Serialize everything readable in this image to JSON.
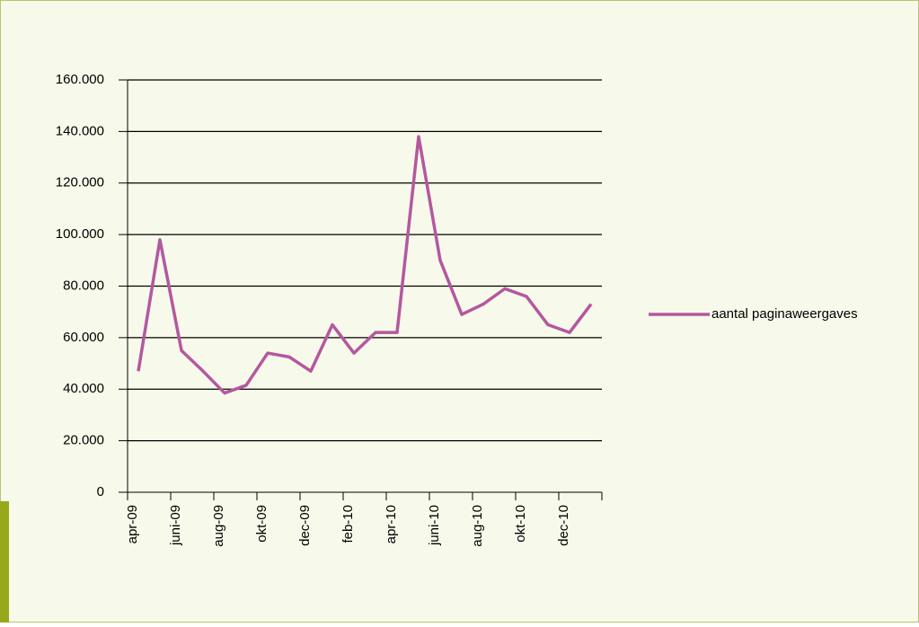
{
  "chart_data": {
    "type": "line",
    "categories": [
      "apr-09",
      null,
      "juni-09",
      null,
      "aug-09",
      null,
      "okt-09",
      null,
      "dec-09",
      null,
      "feb-10",
      null,
      "apr-10",
      null,
      "juni-10",
      null,
      "aug-10",
      null,
      "okt-10",
      null,
      "dec-10",
      null
    ],
    "series": [
      {
        "name": "aantal paginaweergaves",
        "color": "#b4589f",
        "values": [
          47000,
          98000,
          55000,
          47000,
          38500,
          41500,
          54000,
          52500,
          47000,
          65000,
          54000,
          62000,
          62000,
          138000,
          90000,
          69000,
          73000,
          79000,
          76000,
          65000,
          62000,
          73000
        ]
      }
    ],
    "ylim": [
      0,
      160000
    ],
    "yticks": [
      0,
      {
        "value": 20000,
        "label": "20.000"
      },
      {
        "value": 40000,
        "label": "40.000"
      },
      {
        "value": 60000,
        "label": "60.000"
      },
      {
        "value": 80000,
        "label": "80.000"
      },
      {
        "value": 100000,
        "label": "100.000"
      },
      {
        "value": 120000,
        "label": "120.000"
      },
      {
        "value": 140000,
        "label": "140.000"
      },
      {
        "value": 160000,
        "label": "160.000"
      }
    ],
    "grid": true,
    "legend": "right"
  }
}
